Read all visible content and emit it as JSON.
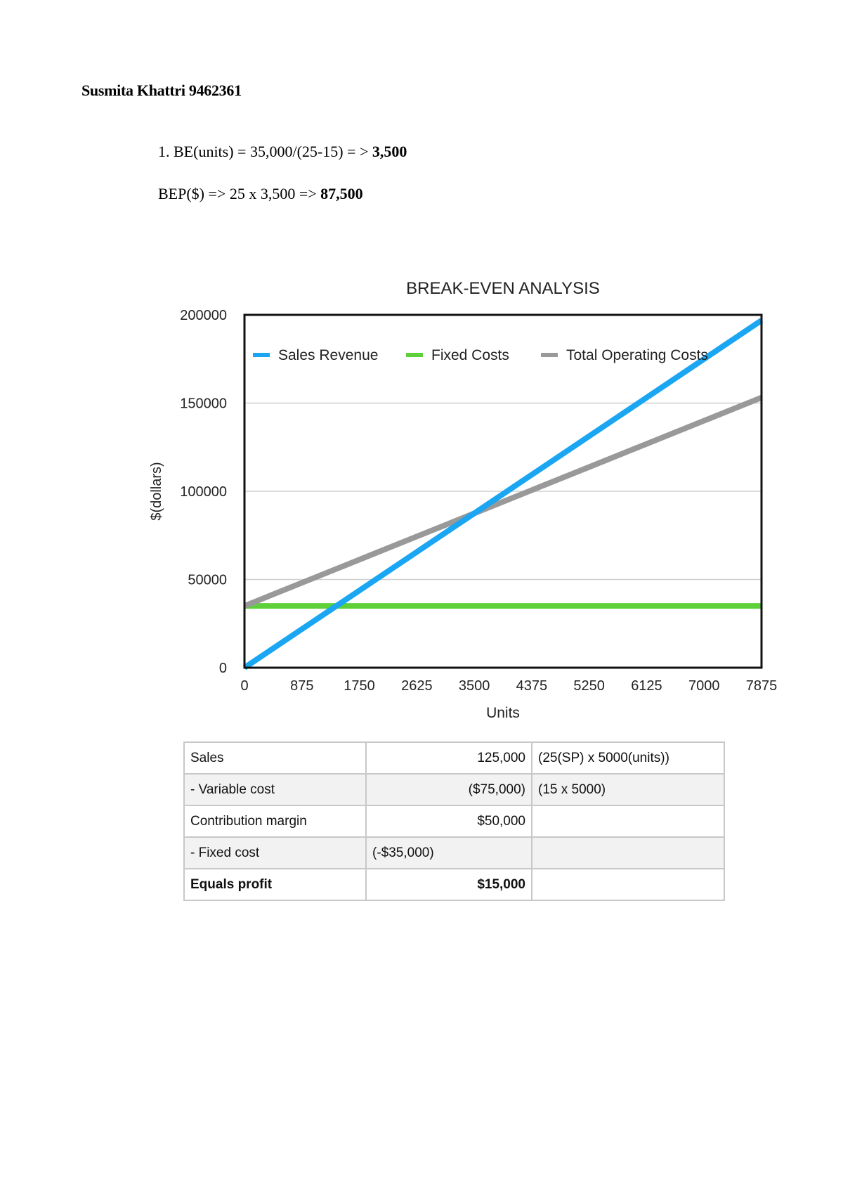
{
  "header": {
    "name": "Susmita Khattri 9462361"
  },
  "formulas": {
    "line1_prefix": "1. BE(units) = 35,000/(25-15) = > ",
    "line1_result": "3,500",
    "line2_prefix": "BEP($) => 25 x 3,500 => ",
    "line2_result": "87,500"
  },
  "chart_data": {
    "type": "line",
    "title": "BREAK-EVEN ANALYSIS",
    "xlabel": "Units",
    "ylabel": "$(dollars)",
    "x_ticks": [
      "0",
      "875",
      "1750",
      "2625",
      "3500",
      "4375",
      "5250",
      "6125",
      "7000",
      "7875"
    ],
    "y_ticks": [
      "0",
      "50000",
      "100000",
      "150000",
      "200000"
    ],
    "xlim": [
      0,
      7875
    ],
    "ylim": [
      0,
      200000
    ],
    "grid": "horizontal",
    "legend_position": "top-inside",
    "x": [
      0,
      875,
      1750,
      2625,
      3500,
      4375,
      5250,
      6125,
      7000,
      7875
    ],
    "series": [
      {
        "name": "Sales Revenue",
        "color": "#1aa6f2",
        "values": [
          0,
          21875,
          43750,
          65625,
          87500,
          109375,
          131250,
          153125,
          175000,
          196875
        ]
      },
      {
        "name": "Fixed Costs",
        "color": "#5ed13a",
        "values": [
          35000,
          35000,
          35000,
          35000,
          35000,
          35000,
          35000,
          35000,
          35000,
          35000
        ]
      },
      {
        "name": "Total Operating Costs",
        "color": "#999999",
        "values": [
          35000,
          48125,
          61250,
          74375,
          87500,
          100625,
          113750,
          126875,
          140000,
          153125
        ]
      }
    ]
  },
  "table": {
    "rows": [
      {
        "label": "Sales",
        "amount": "125,000",
        "note": "(25(SP) x 5000(units))"
      },
      {
        "label": "- Variable cost",
        "amount": "($75,000)",
        "note": "(15 x 5000)"
      },
      {
        "label": "Contribution margin",
        "amount": "$50,000",
        "note": ""
      },
      {
        "label": "- Fixed cost",
        "amount": "(-$35,000)",
        "note": ""
      },
      {
        "label": "Equals profit",
        "amount": "$15,000",
        "note": ""
      }
    ]
  }
}
